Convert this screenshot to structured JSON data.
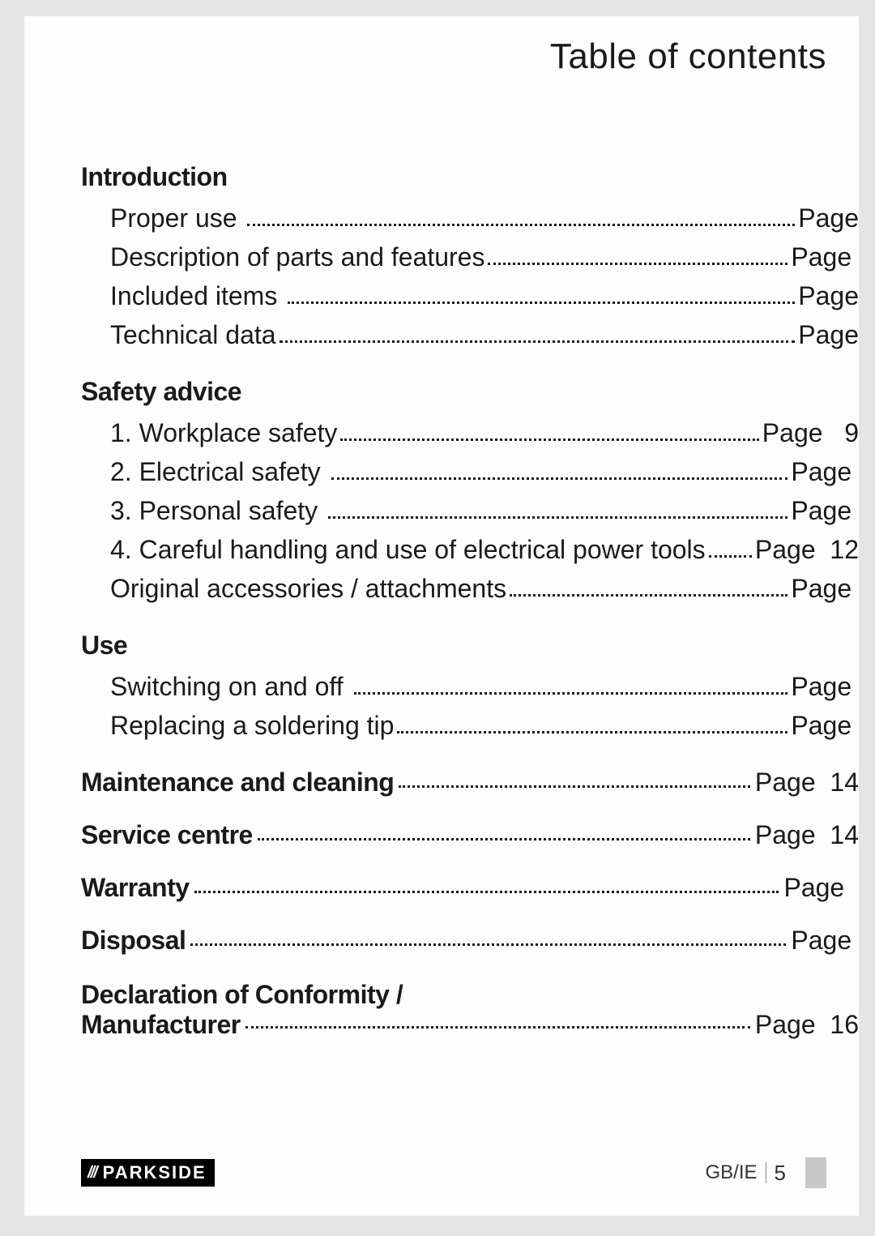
{
  "colors": {
    "page_bg": "#fdfdfd",
    "outer_bg": "#e5e5e5",
    "text": "#1a1a1a",
    "brand_badge_bg": "#000000",
    "brand_badge_fg": "#ffffff",
    "footer_thumb": "#c8c8c8",
    "footer_divider": "#888888"
  },
  "typography": {
    "header_title_fontsize": 44,
    "section_heading_fontsize": 32,
    "toc_fontsize": 32,
    "footer_fontsize": 24
  },
  "header": {
    "title": "Table of contents"
  },
  "toc": {
    "sections": [
      {
        "heading": "Introduction",
        "items": [
          {
            "label": "Proper use ",
            "page_label": "Page",
            "page": ""
          },
          {
            "label": "Description of parts and features",
            "page_label": "Page ",
            "page": ""
          },
          {
            "label": "Included items ",
            "page_label": "Page",
            "page": ""
          },
          {
            "label": "Technical data",
            "page_label": "Page",
            "page": ""
          }
        ]
      },
      {
        "heading": "Safety advice",
        "items": [
          {
            "label": "1. Workplace safety",
            "page_label": "Page   9",
            "page": "9"
          },
          {
            "label": "2. Electrical safety ",
            "page_label": "Page ",
            "page": ""
          },
          {
            "label": "3. Personal safety ",
            "page_label": "Page ",
            "page": ""
          },
          {
            "label": "4. Careful handling and use of electrical power tools",
            "page_label": "Page  12",
            "page": "12"
          },
          {
            "label": "Original accessories / attachments",
            "page_label": "Page ",
            "page": ""
          }
        ]
      },
      {
        "heading": "Use",
        "items": [
          {
            "label": "Switching on and off ",
            "page_label": "Page ",
            "page": ""
          },
          {
            "label": "Replacing a soldering tip",
            "page_label": "Page ",
            "page": ""
          }
        ]
      },
      {
        "heading": "Maintenance and cleaning",
        "inline_page": "Page  14",
        "page": "14"
      },
      {
        "heading": "Service centre ",
        "inline_page": "Page  14",
        "page": "14"
      },
      {
        "heading": "Warranty ",
        "inline_page": "Page  ",
        "page": ""
      },
      {
        "heading": "Disposal",
        "inline_page": "Page ",
        "page": ""
      },
      {
        "heading_line1": "Declaration of Conformity / ",
        "heading_line2": "Manufacturer",
        "inline_page": "Page  16",
        "page": "16"
      }
    ]
  },
  "footer": {
    "brand_slashes": "///",
    "brand_name": "PARKSIDE",
    "region": "GB/IE",
    "page_number": "5"
  }
}
